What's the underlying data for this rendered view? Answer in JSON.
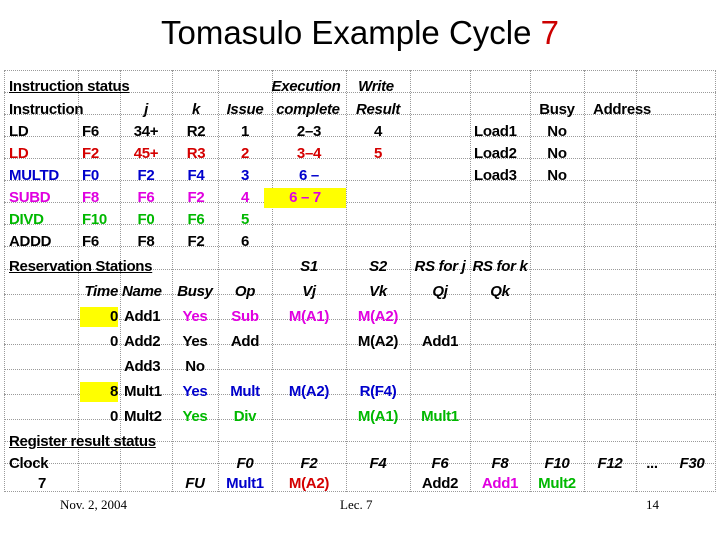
{
  "slide": {
    "title_prefix": "Tomasulo Example Cycle",
    "cycle_number": "7"
  },
  "instruction_status": {
    "header_label": "Instruction status",
    "header_execution": "Execution",
    "header_write": "Write",
    "cols": {
      "instruction": "Instruction",
      "j": "j",
      "k": "k",
      "issue": "Issue",
      "complete": "complete",
      "result": "Result"
    },
    "rows": [
      {
        "op": "LD",
        "dest": "F6",
        "j": "34+",
        "k": "R2",
        "issue": "1",
        "complete": "2–3",
        "result": "4"
      },
      {
        "op": "LD",
        "dest": "F2",
        "j": "45+",
        "k": "R3",
        "issue": "2",
        "complete": "3–4",
        "result": "5"
      },
      {
        "op": "MULTD",
        "dest": "F0",
        "j": "F2",
        "k": "F4",
        "issue": "3",
        "complete": "6 –",
        "result": ""
      },
      {
        "op": "SUBD",
        "dest": "F8",
        "j": "F6",
        "k": "F2",
        "issue": "4",
        "complete": "6 – 7",
        "result": ""
      },
      {
        "op": "DIVD",
        "dest": "F10",
        "j": "F0",
        "k": "F6",
        "issue": "5",
        "complete": "",
        "result": ""
      },
      {
        "op": "ADDD",
        "dest": "F6",
        "j": "F8",
        "k": "F2",
        "issue": "6",
        "complete": "",
        "result": ""
      }
    ]
  },
  "load_buffers": {
    "busy_header": "Busy",
    "address_header": "Address",
    "rows": [
      {
        "name": "Load1",
        "busy": "No",
        "address": ""
      },
      {
        "name": "Load2",
        "busy": "No",
        "address": ""
      },
      {
        "name": "Load3",
        "busy": "No",
        "address": ""
      }
    ]
  },
  "reservation_stations": {
    "header_label": "Reservation Stations",
    "top_headers": {
      "s1": "S1",
      "s2": "S2",
      "rsj": "RS for j",
      "rsk": "RS for k"
    },
    "cols": {
      "time": "Time",
      "name": "Name",
      "busy": "Busy",
      "op": "Op",
      "vj": "Vj",
      "vk": "Vk",
      "qj": "Qj",
      "qk": "Qk"
    },
    "rows": [
      {
        "time": "0",
        "name": "Add1",
        "busy": "Yes",
        "op": "Sub",
        "vj": "M(A1)",
        "vk": "M(A2)",
        "qj": "",
        "qk": ""
      },
      {
        "time": "0",
        "name": "Add2",
        "busy": "Yes",
        "op": "Add",
        "vj": "",
        "vk": "M(A2)",
        "qj": "Add1",
        "qk": ""
      },
      {
        "time": "",
        "name": "Add3",
        "busy": "No",
        "op": "",
        "vj": "",
        "vk": "",
        "qj": "",
        "qk": ""
      },
      {
        "time": "8",
        "name": "Mult1",
        "busy": "Yes",
        "op": "Mult",
        "vj": "M(A2)",
        "vk": "R(F4)",
        "qj": "",
        "qk": ""
      },
      {
        "time": "0",
        "name": "Mult2",
        "busy": "Yes",
        "op": "Div",
        "vj": "",
        "vk": "M(A1)",
        "qj": "Mult1",
        "qk": ""
      }
    ]
  },
  "register_status": {
    "header_label": "Register result status",
    "clock_label": "Clock",
    "clock_value": "7",
    "fu_label": "FU",
    "registers": [
      {
        "name": "F0",
        "fu": "Mult1"
      },
      {
        "name": "F2",
        "fu": "M(A2)"
      },
      {
        "name": "F4",
        "fu": ""
      },
      {
        "name": "F6",
        "fu": "Add2"
      },
      {
        "name": "F8",
        "fu": "Add1"
      },
      {
        "name": "F10",
        "fu": "Mult2"
      },
      {
        "name": "F12",
        "fu": ""
      },
      {
        "name": "...",
        "fu": ""
      },
      {
        "name": "F30",
        "fu": ""
      }
    ]
  },
  "footer": {
    "date": "Nov. 2, 2004",
    "course": "Lec. 7",
    "page": "14"
  }
}
